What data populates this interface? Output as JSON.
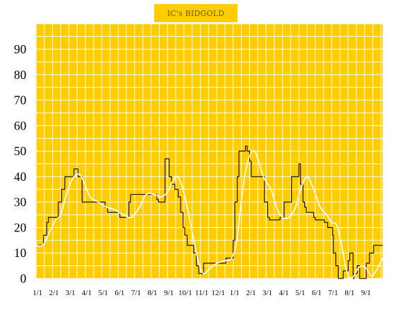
{
  "title": "IC's BIDGOLD",
  "chart_data": {
    "type": "line",
    "title": "IC's BIDGOLD",
    "xlabel": "",
    "ylabel": "",
    "ylim": [
      0,
      90
    ],
    "yticks": [
      0,
      10,
      20,
      30,
      40,
      50,
      60,
      70,
      80,
      90
    ],
    "xtick_labels": [
      "1/1",
      "2/1",
      "3/1",
      "4/1",
      "5/1",
      "6/1",
      "7/1",
      "8/1",
      "9/1",
      "10/1",
      "11/1",
      "12/1",
      "1/1",
      "2/1",
      "3/1",
      "4/1",
      "5/1",
      "6/1",
      "7/1",
      "8/1",
      "9/1"
    ],
    "x_range": [
      0,
      21.1
    ],
    "grid": true,
    "background": "#ffcc00",
    "grid_color": "#ffffff",
    "series": [
      {
        "color": "#000000",
        "style": "step",
        "points": [
          [
            0.0,
            13
          ],
          [
            0.45,
            13
          ],
          [
            0.45,
            17
          ],
          [
            0.65,
            17
          ],
          [
            0.65,
            22
          ],
          [
            0.75,
            22
          ],
          [
            0.75,
            24
          ],
          [
            1.35,
            24
          ],
          [
            1.35,
            30
          ],
          [
            1.55,
            30
          ],
          [
            1.55,
            35
          ],
          [
            1.75,
            35
          ],
          [
            1.75,
            40
          ],
          [
            2.3,
            40
          ],
          [
            2.3,
            43
          ],
          [
            2.55,
            43
          ],
          [
            2.55,
            40
          ],
          [
            2.8,
            40
          ],
          [
            2.8,
            30
          ],
          [
            4.2,
            30
          ],
          [
            4.2,
            28
          ],
          [
            4.35,
            28
          ],
          [
            4.35,
            26
          ],
          [
            5.1,
            26
          ],
          [
            5.1,
            24
          ],
          [
            5.65,
            24
          ],
          [
            5.65,
            30
          ],
          [
            5.75,
            30
          ],
          [
            5.75,
            33
          ],
          [
            7.35,
            33
          ],
          [
            7.35,
            31
          ],
          [
            7.45,
            31
          ],
          [
            7.45,
            30
          ],
          [
            7.85,
            30
          ],
          [
            7.85,
            47
          ],
          [
            8.1,
            47
          ],
          [
            8.1,
            40
          ],
          [
            8.25,
            40
          ],
          [
            8.25,
            37
          ],
          [
            8.45,
            37
          ],
          [
            8.45,
            35
          ],
          [
            8.65,
            35
          ],
          [
            8.65,
            32
          ],
          [
            8.8,
            32
          ],
          [
            8.8,
            26
          ],
          [
            8.95,
            26
          ],
          [
            8.95,
            20
          ],
          [
            9.05,
            20
          ],
          [
            9.05,
            17
          ],
          [
            9.2,
            17
          ],
          [
            9.2,
            13
          ],
          [
            9.6,
            13
          ],
          [
            9.6,
            10
          ],
          [
            9.75,
            10
          ],
          [
            9.75,
            5
          ],
          [
            9.9,
            5
          ],
          [
            9.9,
            2
          ],
          [
            10.2,
            2
          ],
          [
            10.2,
            6
          ],
          [
            11.55,
            6
          ],
          [
            11.55,
            8
          ],
          [
            12.0,
            8
          ],
          [
            12.0,
            15
          ],
          [
            12.1,
            15
          ],
          [
            12.1,
            30
          ],
          [
            12.25,
            30
          ],
          [
            12.25,
            40
          ],
          [
            12.35,
            40
          ],
          [
            12.35,
            50
          ],
          [
            12.75,
            50
          ],
          [
            12.75,
            52
          ],
          [
            12.85,
            52
          ],
          [
            12.85,
            50
          ],
          [
            13.0,
            50
          ],
          [
            13.0,
            46
          ],
          [
            13.1,
            46
          ],
          [
            13.1,
            40
          ],
          [
            13.9,
            40
          ],
          [
            13.9,
            30
          ],
          [
            14.1,
            30
          ],
          [
            14.1,
            24
          ],
          [
            14.2,
            24
          ],
          [
            14.2,
            23
          ],
          [
            14.85,
            23
          ],
          [
            14.85,
            24
          ],
          [
            15.1,
            24
          ],
          [
            15.1,
            30
          ],
          [
            15.55,
            30
          ],
          [
            15.55,
            40
          ],
          [
            16.0,
            40
          ],
          [
            16.0,
            45
          ],
          [
            16.1,
            45
          ],
          [
            16.1,
            37
          ],
          [
            16.25,
            37
          ],
          [
            16.25,
            30
          ],
          [
            16.35,
            30
          ],
          [
            16.35,
            28
          ],
          [
            16.45,
            28
          ],
          [
            16.45,
            26
          ],
          [
            16.9,
            26
          ],
          [
            16.9,
            24
          ],
          [
            17.0,
            24
          ],
          [
            17.0,
            23
          ],
          [
            17.55,
            23
          ],
          [
            17.55,
            22
          ],
          [
            17.75,
            22
          ],
          [
            17.75,
            20
          ],
          [
            18.05,
            20
          ],
          [
            18.05,
            17
          ],
          [
            18.1,
            17
          ],
          [
            18.1,
            10
          ],
          [
            18.25,
            10
          ],
          [
            18.25,
            5
          ],
          [
            18.4,
            5
          ],
          [
            18.4,
            0
          ],
          [
            18.7,
            0
          ],
          [
            18.7,
            3
          ],
          [
            19.0,
            3
          ],
          [
            19.0,
            7
          ],
          [
            19.1,
            7
          ],
          [
            19.1,
            10
          ],
          [
            19.3,
            10
          ],
          [
            19.3,
            0
          ],
          [
            19.35,
            0
          ],
          [
            19.35,
            2
          ],
          [
            19.55,
            2
          ],
          [
            19.55,
            5
          ],
          [
            19.7,
            5
          ],
          [
            19.7,
            0
          ],
          [
            20.1,
            0
          ],
          [
            20.1,
            6
          ],
          [
            20.3,
            6
          ],
          [
            20.3,
            10
          ],
          [
            20.55,
            10
          ],
          [
            20.55,
            13
          ],
          [
            21.1,
            13
          ]
        ]
      },
      {
        "color": "#ffffff",
        "style": "smooth",
        "points": [
          [
            0.0,
            13
          ],
          [
            0.4,
            13
          ],
          [
            0.8,
            18
          ],
          [
            1.2,
            23
          ],
          [
            1.5,
            25
          ],
          [
            1.8,
            32
          ],
          [
            2.2,
            39
          ],
          [
            2.6,
            41
          ],
          [
            2.9,
            38
          ],
          [
            3.3,
            32
          ],
          [
            3.8,
            30
          ],
          [
            4.3,
            28
          ],
          [
            4.8,
            27
          ],
          [
            5.3,
            25
          ],
          [
            5.8,
            24
          ],
          [
            6.3,
            28
          ],
          [
            6.7,
            33
          ],
          [
            7.2,
            33
          ],
          [
            7.6,
            32
          ],
          [
            8.0,
            34
          ],
          [
            8.3,
            38
          ],
          [
            8.6,
            40
          ],
          [
            8.9,
            36
          ],
          [
            9.3,
            25
          ],
          [
            9.6,
            15
          ],
          [
            9.9,
            6
          ],
          [
            10.2,
            2
          ],
          [
            10.6,
            4
          ],
          [
            11.0,
            6
          ],
          [
            11.5,
            7
          ],
          [
            11.9,
            8
          ],
          [
            12.2,
            14
          ],
          [
            12.4,
            25
          ],
          [
            12.7,
            40
          ],
          [
            13.0,
            48
          ],
          [
            13.3,
            50
          ],
          [
            13.6,
            45
          ],
          [
            13.9,
            39
          ],
          [
            14.3,
            35
          ],
          [
            14.7,
            27
          ],
          [
            15.0,
            24
          ],
          [
            15.4,
            24
          ],
          [
            15.8,
            28
          ],
          [
            16.1,
            35
          ],
          [
            16.5,
            40
          ],
          [
            16.9,
            35
          ],
          [
            17.3,
            28
          ],
          [
            17.7,
            25
          ],
          [
            18.0,
            22
          ],
          [
            18.3,
            21
          ],
          [
            18.6,
            13
          ],
          [
            18.9,
            3
          ],
          [
            19.2,
            0
          ],
          [
            19.5,
            3
          ],
          [
            19.8,
            5
          ],
          [
            20.1,
            4
          ],
          [
            20.4,
            1
          ],
          [
            20.7,
            3
          ],
          [
            21.1,
            8
          ]
        ]
      }
    ]
  }
}
